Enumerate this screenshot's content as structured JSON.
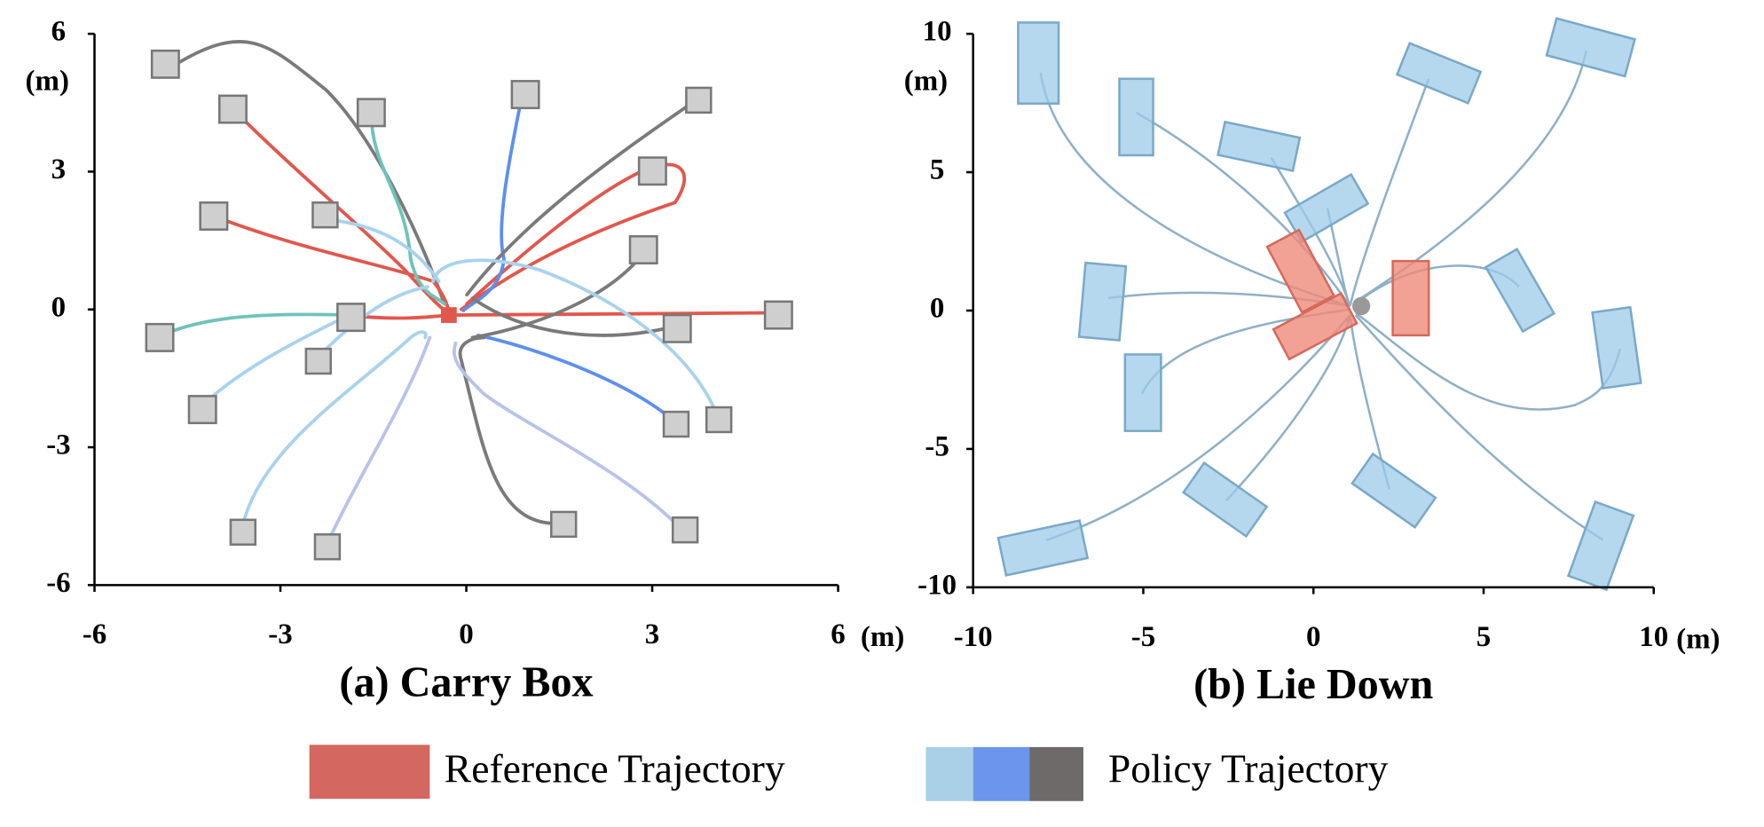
{
  "chart_data": [
    {
      "type": "trajectory",
      "title": "(a) Carry Box",
      "x_label": "(m)",
      "y_label": "(m)",
      "xlim": [
        -6,
        6
      ],
      "ylim": [
        -6,
        6
      ],
      "xticks": [
        -6,
        -3,
        0,
        3,
        6
      ],
      "yticks": [
        6,
        3,
        0,
        -3,
        -6
      ]
    },
    {
      "type": "trajectory",
      "title": "(b) Lie Down",
      "x_label": "(m)",
      "y_label": "(m)",
      "xlim": [
        -10,
        10
      ],
      "ylim": [
        -10,
        10
      ],
      "xticks": [
        -10,
        -5,
        0,
        5,
        10
      ],
      "yticks": [
        10,
        5,
        0,
        -5,
        -10
      ]
    }
  ],
  "legend": [
    {
      "name": "Reference Trajectory"
    },
    {
      "name": "Policy Trajectory"
    }
  ]
}
